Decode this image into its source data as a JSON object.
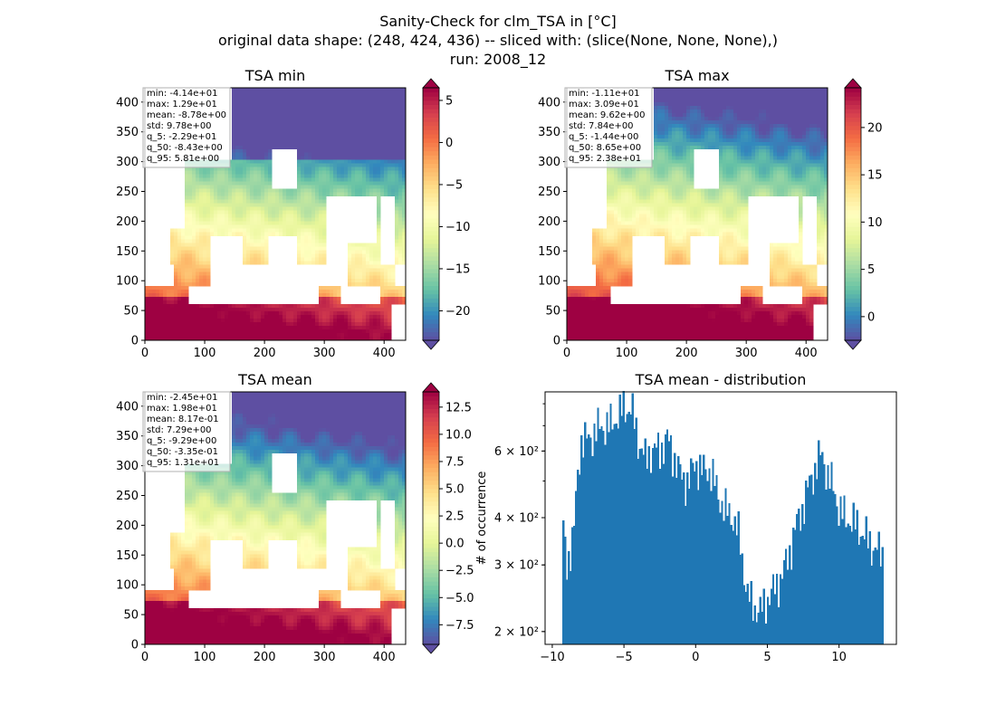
{
  "figure": {
    "title_lines": [
      "Sanity-Check for clm_TSA in [°C]",
      "original data shape: (248, 424, 436) -- sliced with: (slice(None, None, None),)",
      "run: 2008_12"
    ]
  },
  "colors": {
    "histogram_bar": "#1f77b4",
    "colormap_spectral_r": [
      "#5e4fa2",
      "#3288bd",
      "#66c2a5",
      "#abdda4",
      "#e6f598",
      "#ffffbf",
      "#fee08b",
      "#fdae61",
      "#f46d43",
      "#d53e4f",
      "#9e0142"
    ]
  },
  "chart_data": [
    {
      "type": "heatmap",
      "title": "TSA min",
      "colormap": "Spectral_r",
      "xlim": [
        0,
        436
      ],
      "ylim": [
        0,
        424
      ],
      "x_ticks": [
        0,
        100,
        200,
        300,
        400
      ],
      "y_ticks": [
        0,
        50,
        100,
        150,
        200,
        250,
        300,
        350,
        400
      ],
      "colorbar": {
        "range": [
          -23.5,
          6.5
        ],
        "ticks": [
          -20,
          -15,
          -10,
          -5,
          0,
          5
        ],
        "tick_labels": [
          "−20",
          "−15",
          "−10",
          "−5",
          "0",
          "5"
        ]
      },
      "stats": [
        "min: -4.14e+01",
        "max: 1.29e+01",
        "mean: -8.78e+00",
        "std: 9.78e+00",
        "q_5: -2.29e+01",
        "q_50: -8.43e+00",
        "q_95: 5.81e+00"
      ]
    },
    {
      "type": "heatmap",
      "title": "TSA max",
      "colormap": "Spectral_r",
      "xlim": [
        0,
        436
      ],
      "ylim": [
        0,
        424
      ],
      "x_ticks": [
        0,
        100,
        200,
        300,
        400
      ],
      "y_ticks": [
        0,
        50,
        100,
        150,
        200,
        250,
        300,
        350,
        400
      ],
      "colorbar": {
        "range": [
          -2.5,
          24.2
        ],
        "ticks": [
          0,
          5,
          10,
          15,
          20
        ],
        "tick_labels": [
          "0",
          "5",
          "10",
          "15",
          "20"
        ]
      },
      "stats": [
        "min: -1.11e+01",
        "max: 3.09e+01",
        "mean: 9.62e+00",
        "std: 7.84e+00",
        "q_5: -1.44e+00",
        "q_50: 8.65e+00",
        "q_95: 2.38e+01"
      ]
    },
    {
      "type": "heatmap",
      "title": "TSA mean",
      "colormap": "Spectral_r",
      "xlim": [
        0,
        436
      ],
      "ylim": [
        0,
        424
      ],
      "x_ticks": [
        0,
        100,
        200,
        300,
        400
      ],
      "y_ticks": [
        0,
        50,
        100,
        150,
        200,
        250,
        300,
        350,
        400
      ],
      "colorbar": {
        "range": [
          -9.3,
          13.9
        ],
        "ticks": [
          -7.5,
          -5.0,
          -2.5,
          0.0,
          2.5,
          5.0,
          7.5,
          10.0,
          12.5
        ],
        "tick_labels": [
          "−7.5",
          "−5.0",
          "−2.5",
          "0.0",
          "2.5",
          "5.0",
          "7.5",
          "10.0",
          "12.5"
        ]
      },
      "stats": [
        "min: -2.45e+01",
        "max: 1.98e+01",
        "mean: 8.17e-01",
        "std: 7.29e+00",
        "q_5: -9.29e+00",
        "q_50: -3.35e-01",
        "q_95: 1.31e+01"
      ]
    },
    {
      "type": "bar",
      "title": "TSA mean - distribution",
      "ylabel": "# of occurrence",
      "y_scale": "log",
      "xlim": [
        -10.5,
        14.0
      ],
      "ylim": [
        185,
        860
      ],
      "x_ticks": [
        -10,
        -5,
        0,
        5,
        10
      ],
      "x_tick_labels": [
        "−10",
        "−5",
        "0",
        "5",
        "10"
      ],
      "y_ticks": [
        200,
        300,
        400,
        600
      ],
      "y_tick_labels": [
        "2 × 10²",
        "3 × 10²",
        "4 × 10²",
        "6 × 10²"
      ],
      "bin_range": [
        -9.3,
        13.1
      ],
      "keypoints": [
        [
          -9.3,
          390
        ],
        [
          -9.0,
          300
        ],
        [
          -8.5,
          360
        ],
        [
          -8.0,
          640
        ],
        [
          -7.5,
          640
        ],
        [
          -7.0,
          680
        ],
        [
          -6.5,
          700
        ],
        [
          -6.0,
          700
        ],
        [
          -5.5,
          740
        ],
        [
          -5.0,
          780
        ],
        [
          -4.5,
          780
        ],
        [
          -4.0,
          640
        ],
        [
          -3.5,
          570
        ],
        [
          -3.0,
          610
        ],
        [
          -2.5,
          600
        ],
        [
          -2.0,
          650
        ],
        [
          -1.5,
          580
        ],
        [
          -1.0,
          510
        ],
        [
          -0.5,
          500
        ],
        [
          0.0,
          560
        ],
        [
          0.5,
          530
        ],
        [
          1.0,
          540
        ],
        [
          1.5,
          470
        ],
        [
          2.0,
          420
        ],
        [
          2.5,
          410
        ],
        [
          3.0,
          360
        ],
        [
          3.3,
          300
        ],
        [
          3.6,
          250
        ],
        [
          4.0,
          235
        ],
        [
          4.5,
          225
        ],
        [
          5.0,
          245
        ],
        [
          5.5,
          260
        ],
        [
          6.0,
          280
        ],
        [
          6.5,
          320
        ],
        [
          7.0,
          380
        ],
        [
          7.5,
          430
        ],
        [
          8.0,
          500
        ],
        [
          8.5,
          560
        ],
        [
          8.8,
          590
        ],
        [
          9.2,
          520
        ],
        [
          9.7,
          470
        ],
        [
          10.0,
          420
        ],
        [
          10.5,
          400
        ],
        [
          11.0,
          390
        ],
        [
          11.5,
          370
        ],
        [
          12.0,
          350
        ],
        [
          12.5,
          330
        ],
        [
          13.1,
          320
        ]
      ]
    }
  ]
}
